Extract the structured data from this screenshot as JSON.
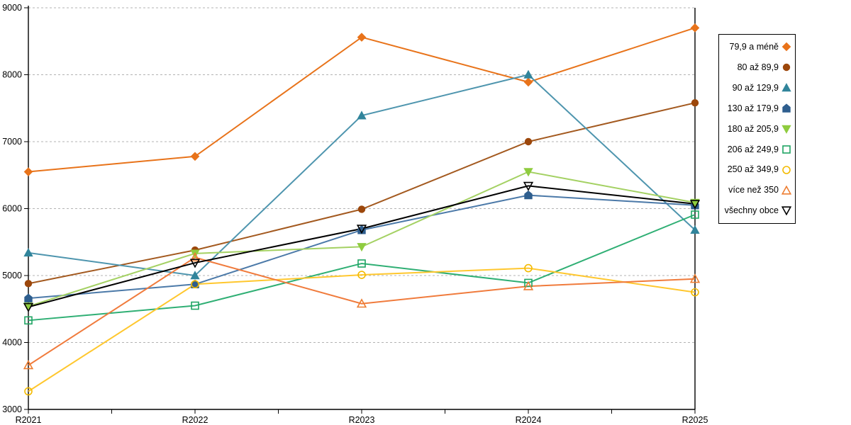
{
  "chart_data": {
    "type": "line",
    "title": "",
    "xlabel": "",
    "ylabel": "",
    "categories": [
      "R2021",
      "R2022",
      "R2023",
      "R2024",
      "R2025"
    ],
    "ylim": [
      3000,
      9000
    ],
    "yticks": [
      3000,
      4000,
      5000,
      6000,
      7000,
      8000,
      9000
    ],
    "grid": "horizontal-dashed",
    "gridline_color": "#b3b3b3",
    "axis_color": "#000000",
    "legend_position": "right",
    "legend_border_color": "#000000",
    "series": [
      {
        "name": "79,9 a méně",
        "marker": "diamond-filled",
        "color": "#e8731a",
        "line_color": "#e8731a",
        "values": [
          6550,
          6780,
          8560,
          7890,
          8700
        ]
      },
      {
        "name": "80 až 89,9",
        "marker": "circle-filled",
        "color": "#9c470b",
        "line_color": "#a3591f",
        "values": [
          4880,
          5380,
          5990,
          7000,
          7580
        ]
      },
      {
        "name": "90 až 129,9",
        "marker": "triangle-up-filled",
        "color": "#31849b",
        "line_color": "#4e95ae",
        "values": [
          5340,
          5000,
          7390,
          8000,
          5680
        ]
      },
      {
        "name": "130 až 179,9",
        "marker": "pentagon-filled",
        "color": "#2e5e8e",
        "line_color": "#4b79a8",
        "values": [
          4660,
          4870,
          5680,
          6200,
          6050
        ]
      },
      {
        "name": "180 až 205,9",
        "marker": "triangle-down-filled",
        "color": "#8fcc3f",
        "line_color": "#a4d163",
        "values": [
          4540,
          5330,
          5430,
          6550,
          6090
        ]
      },
      {
        "name": "206 až 249,9",
        "marker": "square-open",
        "color": "#1fa463",
        "line_color": "#2faf74",
        "values": [
          4330,
          4550,
          5180,
          4890,
          5910
        ]
      },
      {
        "name": "250 až 349,9",
        "marker": "circle-open",
        "color": "#f3ba00",
        "line_color": "#ffc72e",
        "values": [
          3270,
          4870,
          5010,
          5110,
          4750
        ]
      },
      {
        "name": "více než 350",
        "marker": "triangle-up-open",
        "color": "#ed7d31",
        "line_color": "#f07b3c",
        "values": [
          3660,
          5270,
          4580,
          4840,
          4950
        ]
      },
      {
        "name": "všechny obce",
        "marker": "triangle-down-open",
        "color": "#000000",
        "line_color": "#000000",
        "values": [
          4530,
          5190,
          5700,
          6340,
          6070
        ]
      }
    ]
  }
}
